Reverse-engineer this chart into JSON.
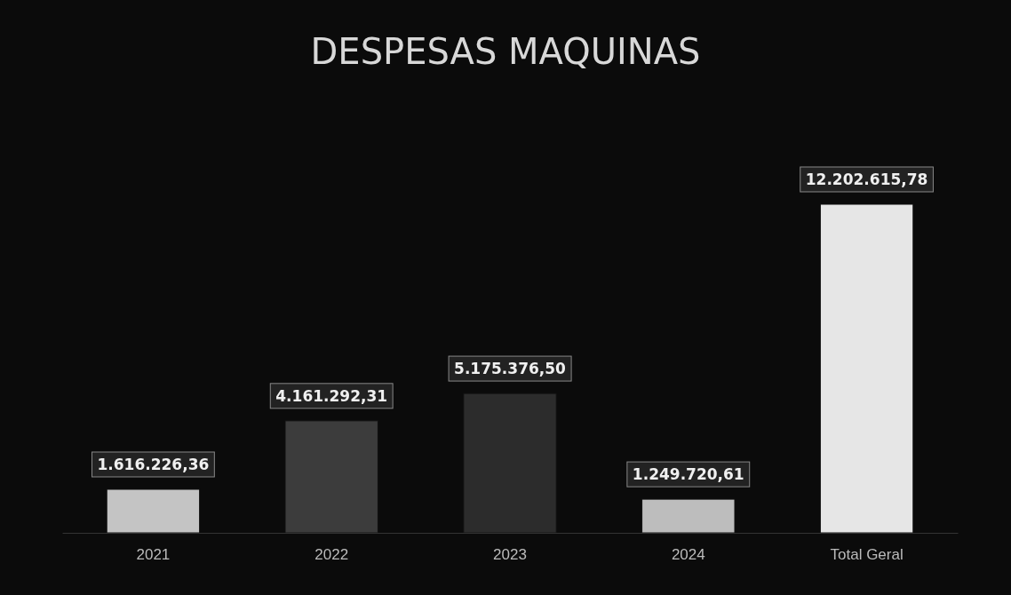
{
  "chart_data": {
    "type": "bar",
    "title": "DESPESAS MAQUINAS",
    "categories": [
      "2021",
      "2022",
      "2023",
      "2024",
      "Total Geral"
    ],
    "values": [
      1616226.36,
      4161292.31,
      5175376.5,
      1249720.61,
      12202615.78
    ],
    "colors": [
      "#c4c4c4",
      "#3c3c3c",
      "#2c2c2c",
      "#bdbdbd",
      "#e6e6e6"
    ],
    "value_labels": [
      "1.616.226,36",
      "4.161.292,31",
      "5.175.376,50",
      "1.249.720,61",
      "12.202.615,78"
    ]
  }
}
